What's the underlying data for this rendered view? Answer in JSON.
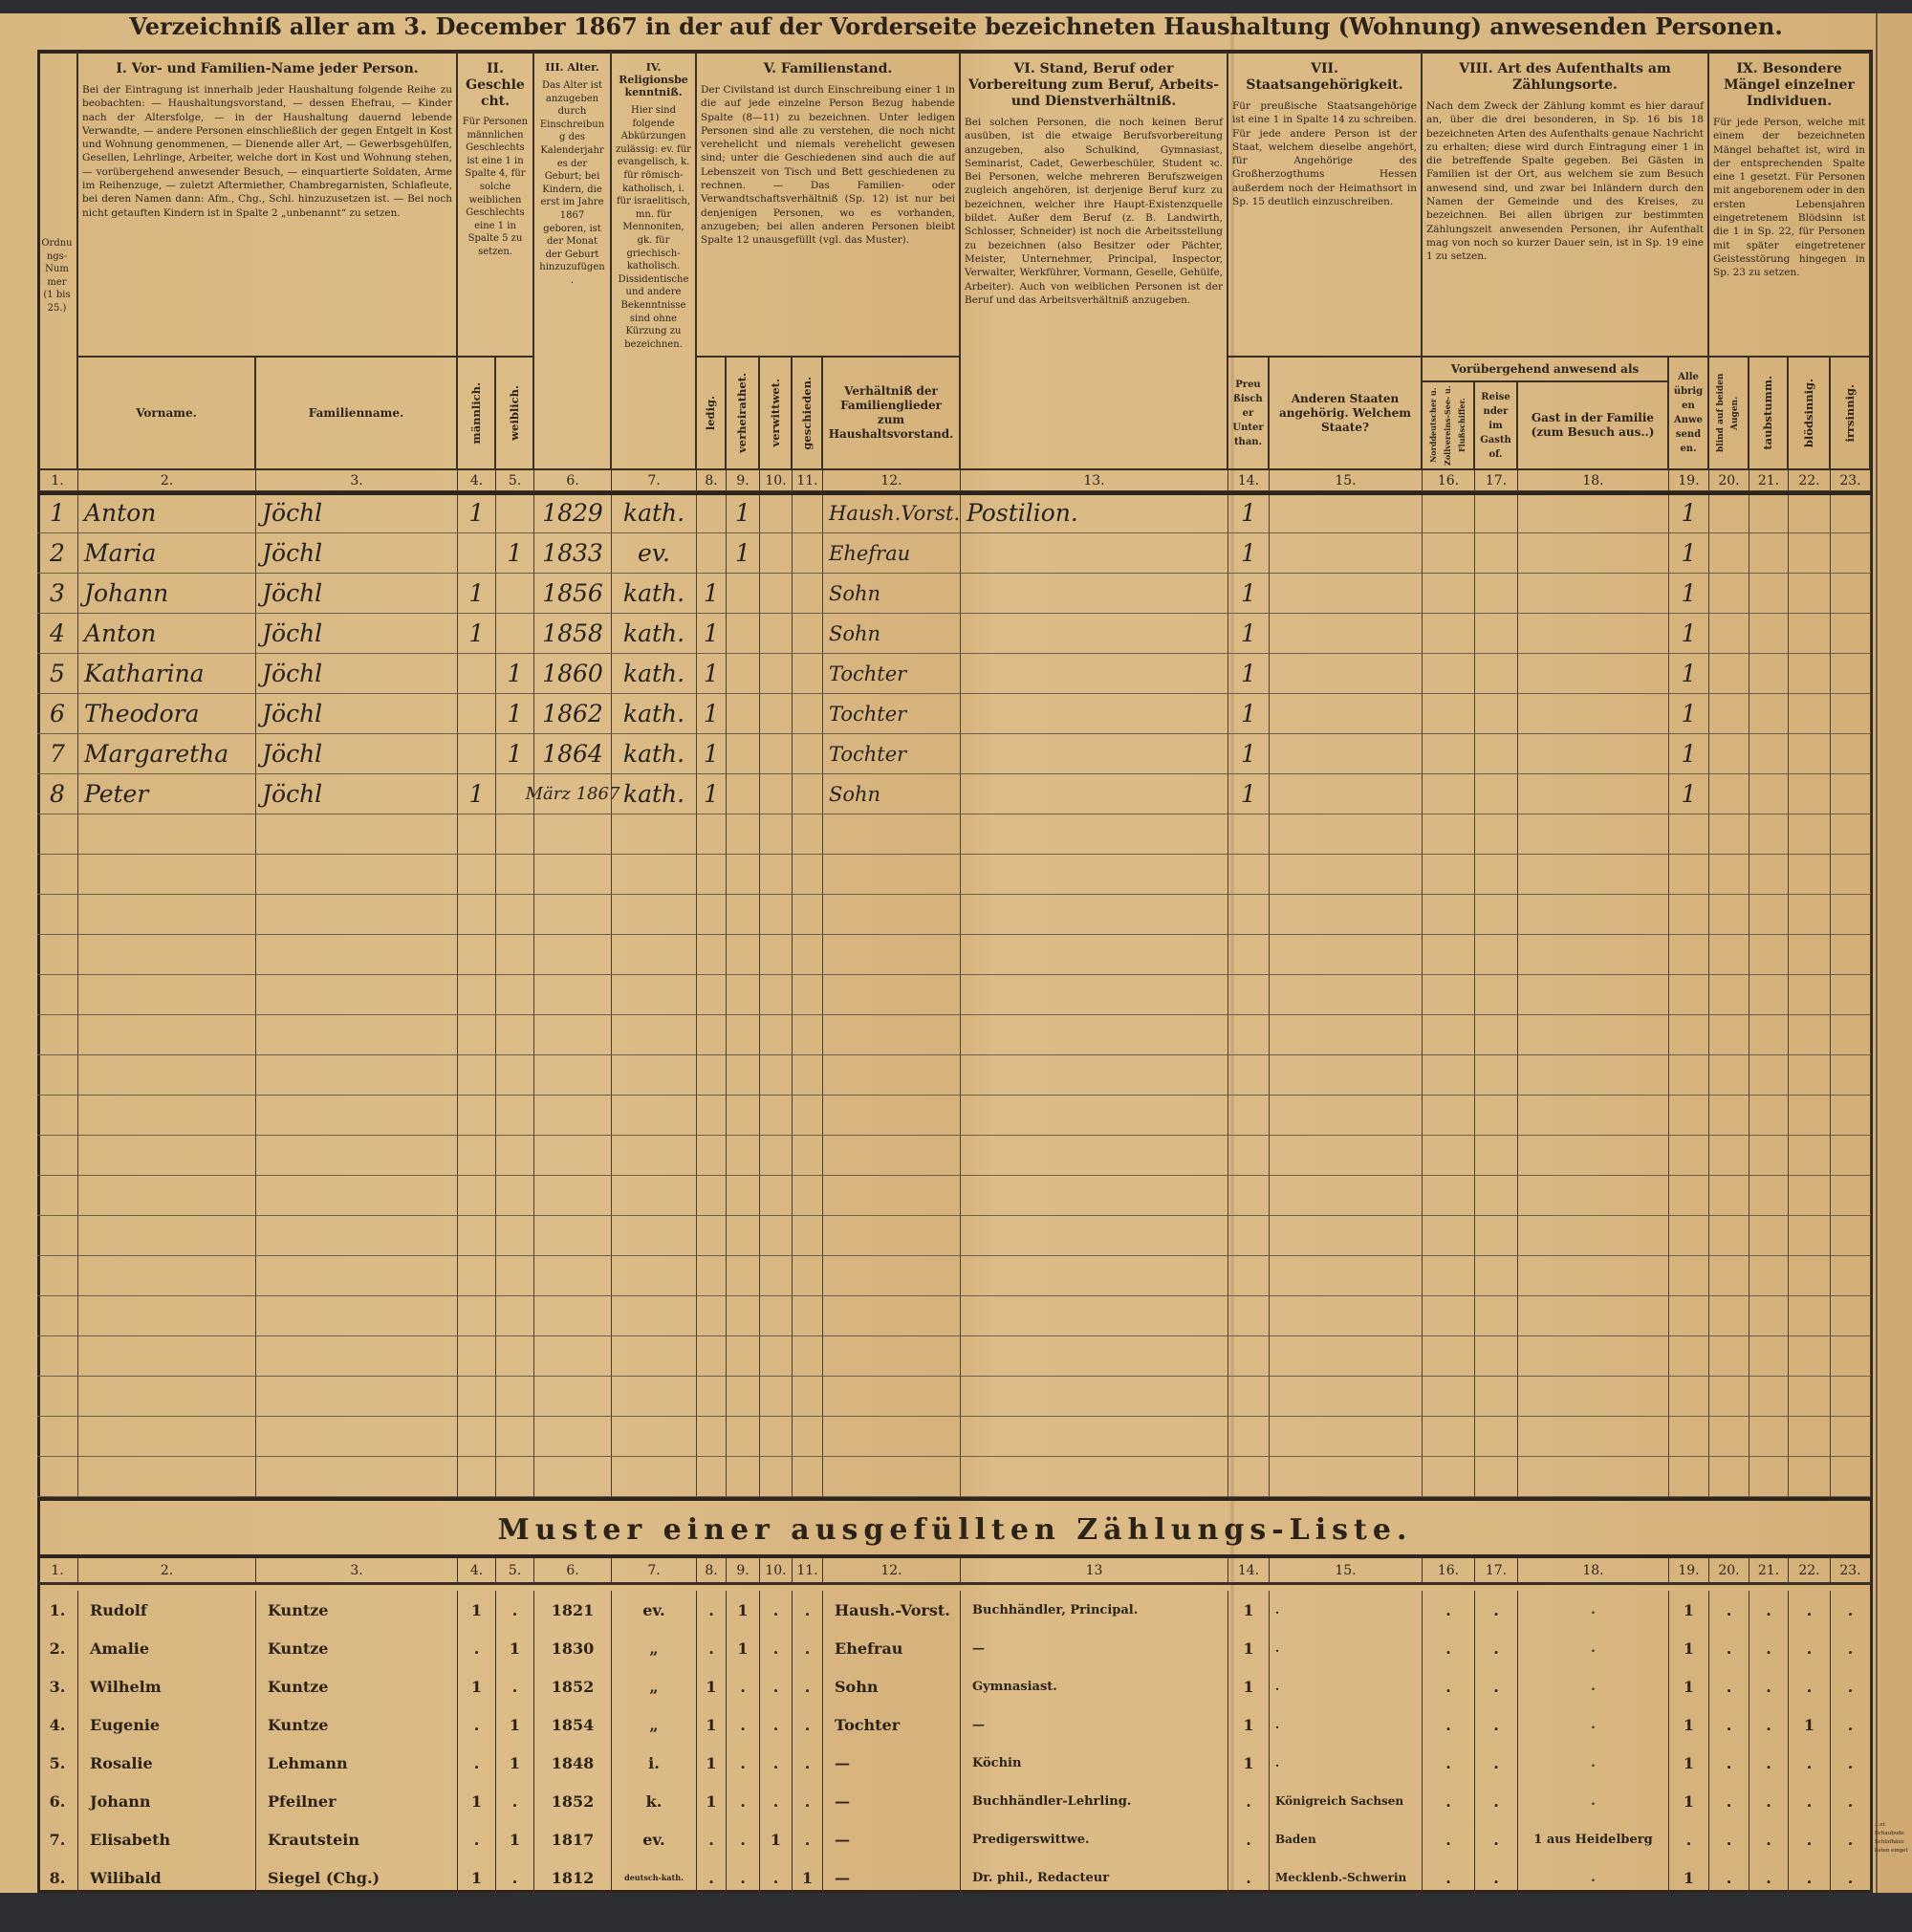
{
  "title": "Verzeichniß aller am 3. December 1867 in der auf der Vorderseite bezeichneten Haushaltung (Wohnung) anwesenden Personen.",
  "header": {
    "ordnungs_nummer": "Ordnungs-Nummer (1 bis 25.)",
    "sections": [
      {
        "title": "I. Vor- und Familien-Name jeder Person.",
        "text": "Bei der Eintragung ist innerhalb jeder Haushaltung folgende Reihe zu beobachten: — Haushaltungsvorstand, — dessen Ehefrau, — Kinder nach der Altersfolge, — in der Haushaltung dauernd lebende Verwandte, — andere Personen einschließlich der gegen Entgelt in Kost und Wohnung genommenen, — Dienende aller Art, — Gewerbsgehülfen, Gesellen, Lehrlinge, Arbeiter, welche dort in Kost und Wohnung stehen, — vorübergehend anwesender Besuch, — einquartierte Soldaten, Arme im Reihenzuge, — zuletzt Aftermiether, Chambregarnisten, Schlafleute, bei deren Namen dann: Afm., Chg., Schl. hinzuzusetzen ist. — Bei noch nicht getauften Kindern ist in Spalte 2 „unbenannt“ zu setzen."
      },
      {
        "title": "II. Geschlecht.",
        "text": "Für Personen männlichen Geschlechts ist eine 1 in Spalte 4, für solche weiblichen Geschlechts eine 1 in Spalte 5 zu setzen."
      },
      {
        "title": "III. Alter.",
        "text": "Das Alter ist anzugeben durch Einschreibung des Kalenderjahres der Geburt; bei Kindern, die erst im Jahre 1867 geboren, ist der Monat der Geburt hinzuzufügen."
      },
      {
        "title": "IV. Religionsbekenntniß.",
        "text": "Hier sind folgende Abkürzungen zulässig: ev. für evangelisch, k. für römisch-katholisch, i. für israelitisch, mn. für Mennoniten, gk. für griechisch-katholisch. Dissidentische und andere Bekenntnisse sind ohne Kürzung zu bezeichnen."
      },
      {
        "title": "V. Familienstand.",
        "text": "Der Civilstand ist durch Einschreibung einer 1 in die auf jede einzelne Person Bezug habende Spalte (8—11) zu bezeichnen. Unter ledigen Personen sind alle zu verstehen, die noch nicht verehelicht und niemals verehelicht gewesen sind; unter die Geschiedenen sind auch die auf Lebenszeit von Tisch und Bett geschiedenen zu rechnen. — Das Familien- oder Verwandtschaftsverhältniß (Sp. 12) ist nur bei denjenigen Personen, wo es vorhanden, anzugeben; bei allen anderen Personen bleibt Spalte 12 unausgefüllt (vgl. das Muster)."
      },
      {
        "title": "VI. Stand, Beruf oder Vorbereitung zum Beruf, Arbeits- und Dienstverhältniß.",
        "text": "Bei solchen Personen, die noch keinen Beruf ausüben, ist die etwaige Berufsvorbereitung anzugeben, also Schulkind, Gymnasiast, Seminarist, Cadet, Gewerbeschüler, Student ꝛc. Bei Personen, welche mehreren Berufszweigen zugleich angehören, ist derjenige Beruf kurz zu bezeichnen, welcher ihre Haupt-Existenzquelle bildet. Außer dem Beruf (z. B. Landwirth, Schlosser, Schneider) ist noch die Arbeitsstellung zu bezeichnen (also Besitzer oder Pächter, Meister, Unternehmer, Principal, Inspector, Verwalter, Werkführer, Vormann, Geselle, Gehülfe, Arbeiter). Auch von weiblichen Personen ist der Beruf und das Arbeitsverhältniß anzugeben."
      },
      {
        "title": "VII. Staatsangehörigkeit.",
        "text": "Für preußische Staatsangehörige ist eine 1 in Spalte 14 zu schreiben. Für jede andere Person ist der Staat, welchem dieselbe angehört, für Angehörige des Großherzogthums Hessen außerdem noch der Heimathsort in Sp. 15 deutlich einzuschreiben."
      },
      {
        "title": "VIII. Art des Aufenthalts am Zählungsorte.",
        "text": "Nach dem Zweck der Zählung kommt es hier darauf an, über die drei besonderen, in Sp. 16 bis 18 bezeichneten Arten des Aufenthalts genaue Nachricht zu erhalten; diese wird durch Eintragung einer 1 in die betreffende Spalte gegeben. Bei Gästen in Familien ist der Ort, aus welchem sie zum Besuch anwesend sind, und zwar bei Inländern durch den Namen der Gemeinde und des Kreises, zu bezeichnen. Bei allen übrigen zur bestimmten Zählungszeit anwesenden Personen, ihr Aufenthalt mag von noch so kurzer Dauer sein, ist in Sp. 19 eine 1 zu setzen."
      },
      {
        "title": "IX. Besondere Mängel einzelner Individuen.",
        "text": "Für jede Person, welche mit einem der bezeichneten Mängel behaftet ist, wird in der entsprechenden Spalte eine 1 gesetzt. Für Personen mit angeborenem oder in den ersten Lebensjahren eingetretenem Blödsinn ist die 1 in Sp. 22, für Personen mit später eingetretener Geistesstörung hingegen in Sp. 23 zu setzen."
      }
    ],
    "sub": {
      "vorname": "Vorname.",
      "familienname": "Familienname.",
      "maennlich": "männlich.",
      "weiblich": "weiblich.",
      "ledig": "ledig.",
      "verheirathet": "verheirathet.",
      "verwittwet": "verwittwet.",
      "geschieden": "geschieden.",
      "verhaeltniss": "Verhältniß der Familienglieder zum Haushaltsvorstand.",
      "preussisch": "Preußischer Unterthan.",
      "andere_staaten": "Anderen Staaten angehörig. Welchem Staate?",
      "voruebergehend": "Vorübergehend anwesend als",
      "schiffer": "Norddeutscher u. Zollvereins-See- u. Flußschiffer.",
      "reisender": "Reisender im Gasthof.",
      "gast": "Gast in der Familie (zum Besuch aus..)",
      "uebrige": "Alle übrigen Anwesenden.",
      "blind": "blind auf beiden Augen.",
      "taubstumm": "taubstumm.",
      "bloedsinnig": "blödsinnig.",
      "irrsinnig": "irrsinnig."
    },
    "col_numbers": [
      "1.",
      "2.",
      "3.",
      "4.",
      "5.",
      "6.",
      "7.",
      "8.",
      "9.",
      "10.",
      "11.",
      "12.",
      "13.",
      "14.",
      "15.",
      "16.",
      "17.",
      "18.",
      "19.",
      "20.",
      "21.",
      "22.",
      "23."
    ]
  },
  "entries": [
    {
      "cells": [
        "1",
        "Anton",
        "Jöchl",
        "1",
        "",
        "1829",
        "kath.",
        "",
        "1",
        "",
        "",
        "Haush.Vorst.",
        "Postilion.",
        "1",
        "",
        "",
        "",
        "",
        "1",
        "",
        "",
        "",
        ""
      ]
    },
    {
      "cells": [
        "2",
        "Maria",
        "Jöchl",
        "",
        "1",
        "1833",
        "ev.",
        "",
        "1",
        "",
        "",
        "Ehefrau",
        "",
        "1",
        "",
        "",
        "",
        "",
        "1",
        "",
        "",
        "",
        ""
      ]
    },
    {
      "cells": [
        "3",
        "Johann",
        "Jöchl",
        "1",
        "",
        "1856",
        "kath.",
        "1",
        "",
        "",
        "",
        "Sohn",
        "",
        "1",
        "",
        "",
        "",
        "",
        "1",
        "",
        "",
        "",
        ""
      ]
    },
    {
      "cells": [
        "4",
        "Anton",
        "Jöchl",
        "1",
        "",
        "1858",
        "kath.",
        "1",
        "",
        "",
        "",
        "Sohn",
        "",
        "1",
        "",
        "",
        "",
        "",
        "1",
        "",
        "",
        "",
        ""
      ]
    },
    {
      "cells": [
        "5",
        "Katharina",
        "Jöchl",
        "",
        "1",
        "1860",
        "kath.",
        "1",
        "",
        "",
        "",
        "Tochter",
        "",
        "1",
        "",
        "",
        "",
        "",
        "1",
        "",
        "",
        "",
        ""
      ]
    },
    {
      "cells": [
        "6",
        "Theodora",
        "Jöchl",
        "",
        "1",
        "1862",
        "kath.",
        "1",
        "",
        "",
        "",
        "Tochter",
        "",
        "1",
        "",
        "",
        "",
        "",
        "1",
        "",
        "",
        "",
        ""
      ]
    },
    {
      "cells": [
        "7",
        "Margaretha",
        "Jöchl",
        "",
        "1",
        "1864",
        "kath.",
        "1",
        "",
        "",
        "",
        "Tochter",
        "",
        "1",
        "",
        "",
        "",
        "",
        "1",
        "",
        "",
        "",
        ""
      ]
    },
    {
      "cells": [
        "8",
        "Peter",
        "Jöchl",
        "1",
        "",
        "März 1867",
        "kath.",
        "1",
        "",
        "",
        "",
        "Sohn",
        "",
        "1",
        "",
        "",
        "",
        "",
        "1",
        "",
        "",
        "",
        ""
      ]
    }
  ],
  "muster": {
    "title": "Muster einer ausgefüllten Zählungs-Liste.",
    "col_numbers": [
      "1.",
      "2.",
      "3.",
      "4.",
      "5.",
      "6.",
      "7.",
      "8.",
      "9.",
      "10.",
      "11.",
      "12.",
      "13",
      "14.",
      "15.",
      "16.",
      "17.",
      "18.",
      "19.",
      "20.",
      "21.",
      "22.",
      "23."
    ],
    "rows": [
      {
        "cells": [
          "1.",
          "Rudolf",
          "Kuntze",
          "1",
          ".",
          "1821",
          "ev.",
          ".",
          "1",
          ".",
          ".",
          "Haush.-Vorst.",
          "Buchhändler, Principal.",
          "1",
          ".",
          ".",
          ".",
          ".",
          "1",
          ".",
          ".",
          ".",
          "."
        ]
      },
      {
        "cells": [
          "2.",
          "Amalie",
          "Kuntze",
          ".",
          "1",
          "1830",
          "„",
          ".",
          "1",
          ".",
          ".",
          "Ehefrau",
          "—",
          "1",
          ".",
          ".",
          ".",
          ".",
          "1",
          ".",
          ".",
          ".",
          "."
        ]
      },
      {
        "cells": [
          "3.",
          "Wilhelm",
          "Kuntze",
          "1",
          ".",
          "1852",
          "„",
          "1",
          ".",
          ".",
          ".",
          "Sohn",
          "Gymnasiast.",
          "1",
          ".",
          ".",
          ".",
          ".",
          "1",
          ".",
          ".",
          ".",
          "."
        ]
      },
      {
        "cells": [
          "4.",
          "Eugenie",
          "Kuntze",
          ".",
          "1",
          "1854",
          "„",
          "1",
          ".",
          ".",
          ".",
          "Tochter",
          "—",
          "1",
          ".",
          ".",
          ".",
          ".",
          "1",
          ".",
          ".",
          "1",
          "."
        ]
      },
      {
        "cells": [
          "5.",
          "Rosalie",
          "Lehmann",
          ".",
          "1",
          "1848",
          "i.",
          "1",
          ".",
          ".",
          ".",
          "—",
          "Köchin",
          "1",
          ".",
          ".",
          ".",
          ".",
          "1",
          ".",
          ".",
          ".",
          "."
        ]
      },
      {
        "cells": [
          "6.",
          "Johann",
          "Pfeilner",
          "1",
          ".",
          "1852",
          "k.",
          "1",
          ".",
          ".",
          ".",
          "—",
          "Buchhändler-Lehrling.",
          ".",
          "Königreich Sachsen",
          ".",
          ".",
          ".",
          "1",
          ".",
          ".",
          ".",
          "."
        ]
      },
      {
        "cells": [
          "7.",
          "Elisabeth",
          "Krautstein",
          ".",
          "1",
          "1817",
          "ev.",
          ".",
          ".",
          "1",
          ".",
          "—",
          "Predigerswittwe.",
          ".",
          "Baden",
          ".",
          ".",
          "1 aus Heidelberg",
          ".",
          ".",
          ".",
          ".",
          "."
        ]
      },
      {
        "cells": [
          "8.",
          "Wilibald",
          "Siegel (Chg.)",
          "1",
          ".",
          "1812",
          "deutsch-kath.",
          ".",
          ".",
          ".",
          "1",
          "—",
          "Dr. phil., Redacteur",
          ".",
          "Mecklenb.-Schwerin",
          ".",
          ".",
          ".",
          "1",
          ".",
          ".",
          ".",
          "."
        ]
      }
    ]
  },
  "edge_fragment": [
    "…et",
    "Schaubude",
    "Schlafhäus",
    "listen einget"
  ],
  "colors": {
    "paper": "#d9b782",
    "ink": "#2b2318",
    "handwriting": "#26221d",
    "background": "#2c2e31"
  }
}
